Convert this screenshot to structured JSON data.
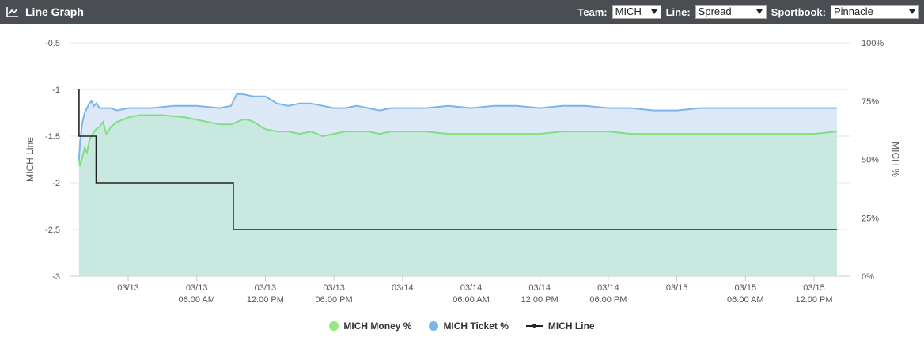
{
  "header": {
    "title": "Line Graph",
    "icon": "line-chart-icon",
    "team_label": "Team:",
    "team_value": "MICH",
    "line_label": "Line:",
    "line_value": "Spread",
    "book_label": "Sportbook:",
    "book_value": "Pinnacle"
  },
  "chart_data": {
    "type": "line",
    "title": "",
    "ylabel_left": "MICH Line",
    "ylabel_right": "MICH %",
    "left_axis": {
      "range": [
        -3,
        -0.5
      ],
      "ticks": [
        "-0.5",
        "-1",
        "-1.5",
        "-2",
        "-2.5",
        "-3"
      ]
    },
    "right_axis": {
      "range": [
        0,
        100
      ],
      "ticks": [
        "100%",
        "75%",
        "50%",
        "25%",
        "0%"
      ]
    },
    "x_ticks": [
      [
        "03/13",
        ""
      ],
      [
        "03/13",
        "06:00 AM"
      ],
      [
        "03/13",
        "12:00 PM"
      ],
      [
        "03/13",
        "06:00 PM"
      ],
      [
        "03/14",
        ""
      ],
      [
        "03/14",
        "06:00 AM"
      ],
      [
        "03/14",
        "12:00 PM"
      ],
      [
        "03/14",
        "06:00 PM"
      ],
      [
        "03/15",
        ""
      ],
      [
        "03/15",
        "06:00 AM"
      ],
      [
        "03/15",
        "12:00 PM"
      ]
    ],
    "x_hours": [
      0,
      6,
      12,
      18,
      24,
      30,
      36,
      42,
      48,
      54,
      60
    ],
    "grid": true,
    "legend_position": "bottom-center",
    "series": [
      {
        "name": "MICH Money %",
        "axis": "right",
        "color": "#7ee081",
        "fill": "#c9e9e0",
        "x": [
          -4.3,
          -4.2,
          -4.0,
          -3.8,
          -3.6,
          -3.4,
          -3.1,
          -2.8,
          -2.5,
          -2.2,
          -1.9,
          -1.5,
          -1.0,
          0,
          1,
          2,
          3,
          5,
          7,
          8,
          9,
          9.5,
          10,
          10.5,
          11,
          12,
          13,
          14,
          15,
          16,
          17,
          18,
          19,
          20,
          21,
          22,
          23,
          24,
          26,
          28,
          30,
          32,
          34,
          36,
          38,
          40,
          42,
          44,
          46,
          48,
          50,
          52,
          54,
          56,
          58,
          60,
          62
        ],
        "y": [
          50,
          47,
          51,
          55,
          53,
          58,
          61,
          63,
          64,
          66,
          61,
          64,
          66,
          68,
          69,
          69,
          69,
          68,
          66,
          65,
          65,
          66,
          67,
          67,
          66,
          63,
          62,
          62,
          61,
          62,
          60,
          61,
          62,
          62,
          62,
          61,
          62,
          62,
          62,
          61,
          61,
          61,
          61,
          61,
          62,
          62,
          62,
          61,
          61,
          61,
          61,
          61,
          61,
          61,
          61,
          61,
          62
        ]
      },
      {
        "name": "MICH Ticket %",
        "axis": "right",
        "color": "#7cb5ec",
        "fill": "#dde9f7",
        "x": [
          -4.3,
          -4.2,
          -4.0,
          -3.8,
          -3.6,
          -3.4,
          -3.2,
          -3.0,
          -2.8,
          -2.5,
          -2.2,
          -1.9,
          -1.5,
          -1.0,
          0,
          2,
          4,
          6,
          8,
          9,
          9.5,
          10,
          11,
          12,
          13,
          14,
          15,
          16,
          17,
          18,
          19,
          20,
          21,
          22,
          23,
          24,
          26,
          28,
          30,
          32,
          34,
          36,
          38,
          40,
          42,
          44,
          46,
          48,
          50,
          52,
          54,
          56,
          58,
          60,
          62
        ],
        "y": [
          50,
          58,
          66,
          70,
          72,
          74,
          75,
          73,
          74,
          72,
          72,
          72,
          72,
          71,
          72,
          72,
          73,
          73,
          72,
          73,
          78,
          78,
          77,
          77,
          74,
          73,
          74,
          74,
          73,
          72,
          72,
          73,
          72,
          71,
          72,
          72,
          72,
          73,
          72,
          73,
          73,
          72,
          73,
          73,
          72,
          72,
          71,
          71,
          72,
          72,
          72,
          72,
          72,
          72,
          72
        ]
      },
      {
        "name": "MICH Line",
        "axis": "left",
        "color": "#222222",
        "step": true,
        "x": [
          -4.3,
          -4.3,
          -2.8,
          -2.8,
          9.2,
          9.2,
          62
        ],
        "y": [
          -1,
          -1.5,
          -1.5,
          -2,
          -2,
          -2.5,
          -2.5
        ]
      }
    ]
  }
}
